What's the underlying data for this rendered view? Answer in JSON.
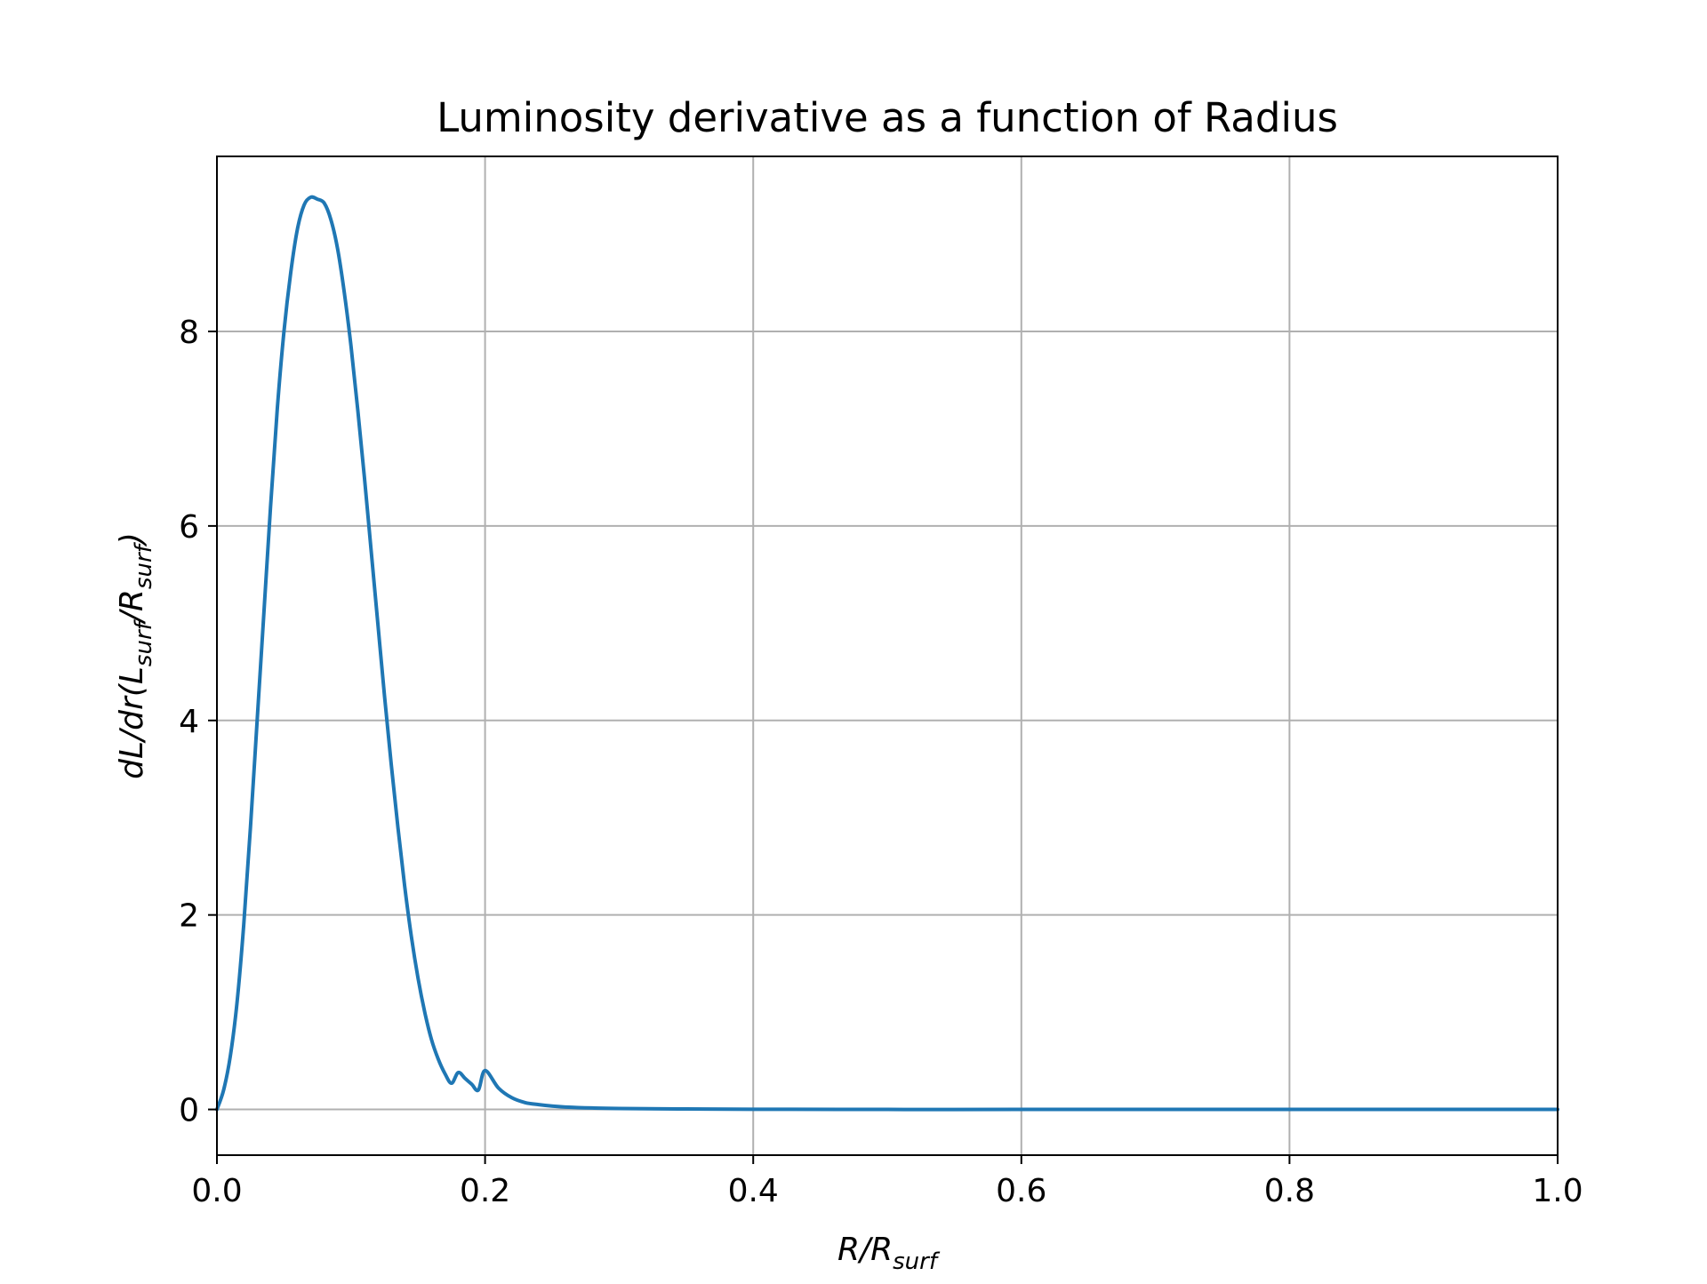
{
  "chart_data": {
    "type": "line",
    "title": "Luminosity derivative as a function of Radius",
    "xlabel": {
      "main": "R/R",
      "sub": "surf"
    },
    "ylabel": {
      "p1": "dL/dr(L",
      "sub1": "surf",
      "p2": "/R",
      "sub2": "surf",
      "p3": ")"
    },
    "xlim": [
      0.0,
      1.0
    ],
    "ylim": [
      -0.47,
      9.8
    ],
    "xticks": [
      "0.0",
      "0.2",
      "0.4",
      "0.6",
      "0.8",
      "1.0"
    ],
    "yticks": [
      "0",
      "2",
      "4",
      "6",
      "8"
    ],
    "grid": true,
    "legend": "none",
    "series": [
      {
        "color": "#1f77b4",
        "x": [
          0.0,
          0.005,
          0.01,
          0.015,
          0.02,
          0.025,
          0.03,
          0.035,
          0.04,
          0.045,
          0.05,
          0.055,
          0.06,
          0.065,
          0.07,
          0.075,
          0.08,
          0.085,
          0.09,
          0.095,
          0.1,
          0.105,
          0.11,
          0.115,
          0.12,
          0.125,
          0.13,
          0.135,
          0.14,
          0.145,
          0.15,
          0.155,
          0.16,
          0.165,
          0.17,
          0.175,
          0.18,
          0.185,
          0.19,
          0.195,
          0.2,
          0.21,
          0.22,
          0.23,
          0.24,
          0.25,
          0.26,
          0.28,
          0.3,
          0.35,
          0.4,
          0.5,
          0.6,
          0.7,
          0.8,
          0.9,
          1.0
        ],
        "y": [
          0.0,
          0.2,
          0.55,
          1.1,
          1.9,
          2.9,
          4.0,
          5.1,
          6.2,
          7.2,
          8.0,
          8.6,
          9.05,
          9.3,
          9.38,
          9.36,
          9.32,
          9.15,
          8.85,
          8.4,
          7.85,
          7.2,
          6.5,
          5.75,
          5.0,
          4.25,
          3.55,
          2.9,
          2.3,
          1.78,
          1.35,
          1.0,
          0.72,
          0.52,
          0.37,
          0.27,
          0.38,
          0.32,
          0.26,
          0.2,
          0.4,
          0.22,
          0.12,
          0.07,
          0.05,
          0.035,
          0.025,
          0.015,
          0.01,
          0.005,
          0.002,
          0.0,
          0.0,
          0.0,
          0.0,
          0.0,
          0.0
        ]
      }
    ]
  }
}
